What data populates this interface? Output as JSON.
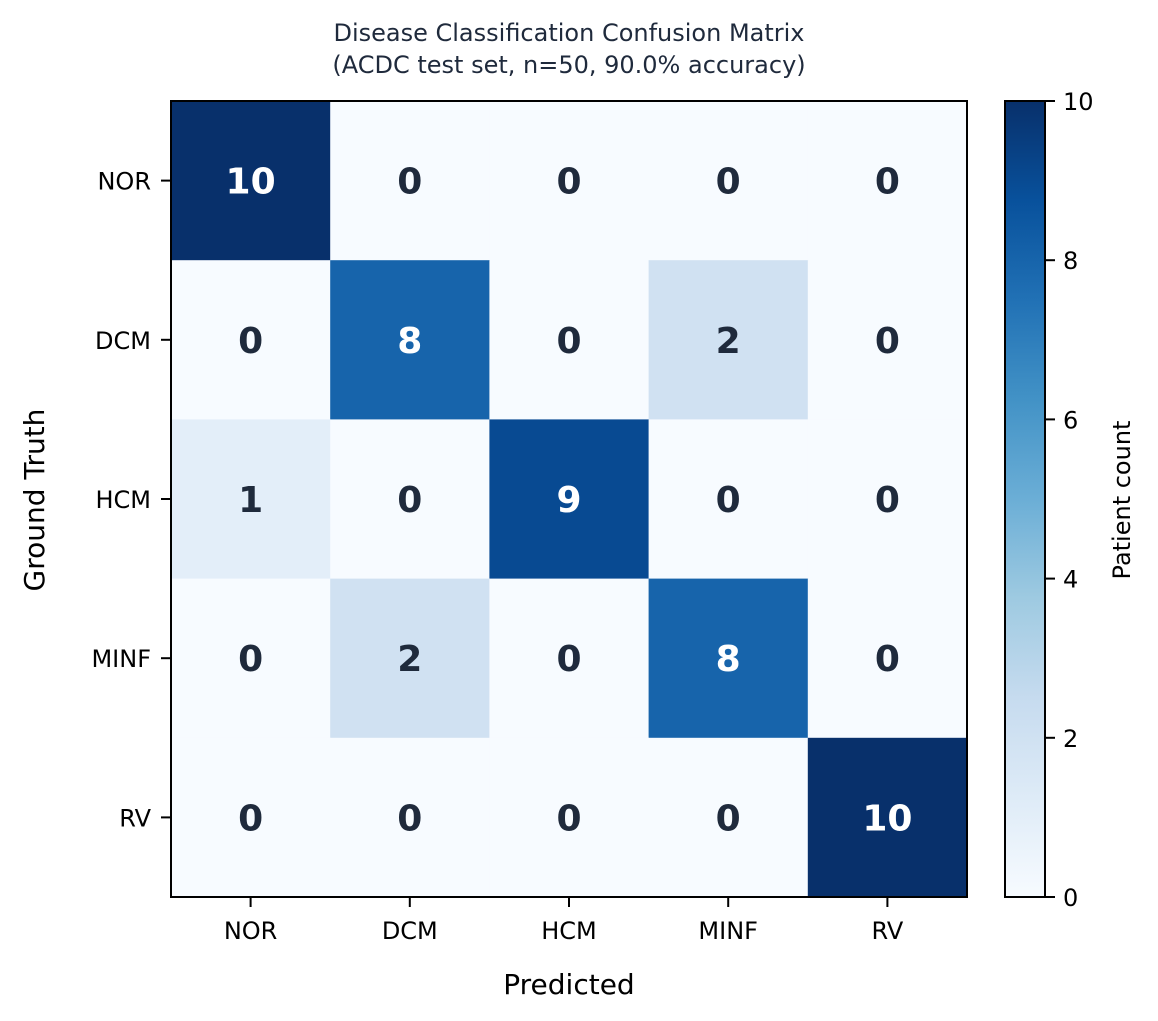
{
  "chart_data": {
    "type": "heatmap",
    "title": "Disease Classification Confusion Matrix",
    "subtitle": "(ACDC test set, n=50, 90.0% accuracy)",
    "xlabel": "Predicted",
    "ylabel": "Ground Truth",
    "x_categories": [
      "NOR",
      "DCM",
      "HCM",
      "MINF",
      "RV"
    ],
    "y_categories": [
      "NOR",
      "DCM",
      "HCM",
      "MINF",
      "RV"
    ],
    "values": [
      [
        10,
        0,
        0,
        0,
        0
      ],
      [
        0,
        8,
        0,
        2,
        0
      ],
      [
        1,
        0,
        9,
        0,
        0
      ],
      [
        0,
        2,
        0,
        8,
        0
      ],
      [
        0,
        0,
        0,
        0,
        10
      ]
    ],
    "colormap": "Blues",
    "vmin": 0,
    "vmax": 10,
    "colorbar": {
      "label": "Patient count",
      "ticks": [
        0,
        2,
        4,
        6,
        8,
        10
      ]
    },
    "colors": {
      "title": "#1f2a3c",
      "text_dark": "#1f2a3c",
      "text_light": "#ffffff"
    }
  }
}
